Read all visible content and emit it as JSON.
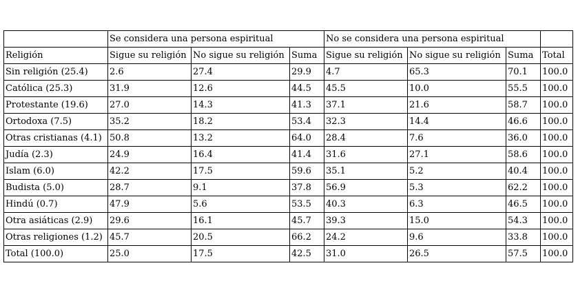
{
  "groups": {
    "spiritual": "Se considera una persona espiritual",
    "not_spiritual": "No se considera una persona espiritual"
  },
  "headers": [
    "Religión",
    "Sigue su religión",
    "No sigue su religión",
    "Suma",
    "Sigue su religión",
    "No sigue su religión",
    "Suma",
    "Total"
  ],
  "rows": [
    [
      "Sin religión (25.4)",
      "2.6",
      "27.4",
      "29.9",
      "4.7",
      "65.3",
      "70.1",
      "100.0"
    ],
    [
      "Católica (25.3)",
      "31.9",
      "12.6",
      "44.5",
      "45.5",
      "10.0",
      "55.5",
      "100.0"
    ],
    [
      "Protestante (19.6)",
      "27.0",
      "14.3",
      "41.3",
      "37.1",
      "21.6",
      "58.7",
      "100.0"
    ],
    [
      "Ortodoxa (7.5)",
      "35.2",
      "18.2",
      "53.4",
      "32.3",
      "14.4",
      "46.6",
      "100.0"
    ],
    [
      "Otras cristianas (4.1)",
      "50.8",
      "13.2",
      "64.0",
      "28.4",
      "7.6",
      "36.0",
      "100.0"
    ],
    [
      "Judía (2.3)",
      "24.9",
      "16.4",
      "41.4",
      "31.6",
      "27.1",
      "58.6",
      "100.0"
    ],
    [
      "Islam (6.0)",
      "42.2",
      "17.5",
      "59.6",
      "35.1",
      "5.2",
      "40.4",
      "100.0"
    ],
    [
      "Budista (5.0)",
      "28.7",
      "9.1",
      "37.8",
      "56.9",
      "5.3",
      "62.2",
      "100.0"
    ],
    [
      "Hindú (0.7)",
      "47.9",
      "5.6",
      "53.5",
      "40.3",
      "6.3",
      "46.5",
      "100.0"
    ],
    [
      "Otra asiáticas (2.9)",
      "29.6",
      "16.1",
      "45.7",
      "39.3",
      "15.0",
      "54.3",
      "100.0"
    ],
    [
      "Otras religiones (1.2)",
      "45.7",
      "20.5",
      "66.2",
      "24.2",
      "9.6",
      "33.8",
      "100.0"
    ],
    [
      "Total (100.0)",
      "25.0",
      "17.5",
      "42.5",
      "31.0",
      "26.5",
      "57.5",
      "100.0"
    ]
  ]
}
